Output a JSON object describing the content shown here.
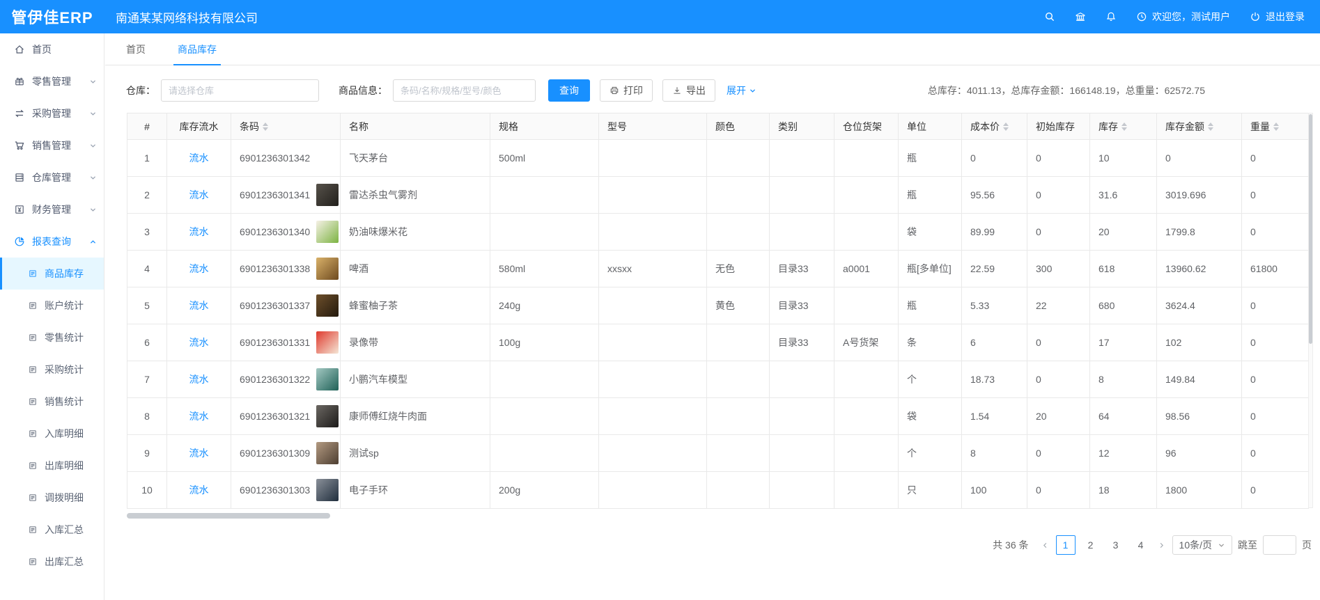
{
  "topbar": {
    "logo": "管伊佳ERP",
    "company": "南通某某网络科技有限公司",
    "welcome": "欢迎您，测试用户",
    "logout": "退出登录"
  },
  "tabs": [
    {
      "id": "home",
      "label": "首页",
      "active": false
    },
    {
      "id": "goods-stock",
      "label": "商品库存",
      "active": true
    }
  ],
  "sidebar": {
    "items": [
      {
        "id": "home",
        "label": "首页",
        "icon": "home-icon",
        "level": 1
      },
      {
        "id": "retail-mgmt",
        "label": "零售管理",
        "icon": "retail-icon",
        "level": 1,
        "chevron": "down"
      },
      {
        "id": "purchase-mgmt",
        "label": "采购管理",
        "icon": "purchase-icon",
        "level": 1,
        "chevron": "down"
      },
      {
        "id": "sales-mgmt",
        "label": "销售管理",
        "icon": "sales-icon",
        "level": 1,
        "chevron": "down"
      },
      {
        "id": "warehouse-mgmt",
        "label": "仓库管理",
        "icon": "warehouse-icon",
        "level": 1,
        "chevron": "down"
      },
      {
        "id": "finance-mgmt",
        "label": "财务管理",
        "icon": "finance-icon",
        "level": 1,
        "chevron": "down"
      },
      {
        "id": "report-query",
        "label": "报表查询",
        "icon": "report-icon",
        "level": 1,
        "chevron": "up",
        "active": true
      },
      {
        "id": "goods-stock",
        "label": "商品库存",
        "icon": "doc-icon",
        "level": 2,
        "selected": true
      },
      {
        "id": "account-stats",
        "label": "账户统计",
        "icon": "doc-icon",
        "level": 2
      },
      {
        "id": "retail-stats",
        "label": "零售统计",
        "icon": "doc-icon",
        "level": 2
      },
      {
        "id": "purchase-stats",
        "label": "采购统计",
        "icon": "doc-icon",
        "level": 2
      },
      {
        "id": "sales-stats",
        "label": "销售统计",
        "icon": "doc-icon",
        "level": 2
      },
      {
        "id": "inbound-detail",
        "label": "入库明细",
        "icon": "doc-icon",
        "level": 2
      },
      {
        "id": "outbound-detail",
        "label": "出库明细",
        "icon": "doc-icon",
        "level": 2
      },
      {
        "id": "transfer-detail",
        "label": "调拨明细",
        "icon": "doc-icon",
        "level": 2
      },
      {
        "id": "inbound-summary",
        "label": "入库汇总",
        "icon": "doc-icon",
        "level": 2
      },
      {
        "id": "outbound-summary",
        "label": "出库汇总",
        "icon": "doc-icon",
        "level": 2
      }
    ]
  },
  "filter": {
    "warehouse_label": "仓库：",
    "warehouse_placeholder": "请选择仓库",
    "product_label": "商品信息：",
    "product_placeholder": "条码/名称/规格/型号/颜色",
    "search_button": "查询",
    "print_button": "打印",
    "export_button": "导出",
    "expand_link": "展开",
    "summary": "总库存：4011.13，总库存金额：166148.19，总重量：62572.75"
  },
  "table": {
    "flow_link_label": "流水",
    "columns": [
      {
        "id": "index",
        "label": "#",
        "sortable": false
      },
      {
        "id": "flow",
        "label": "库存流水",
        "sortable": false
      },
      {
        "id": "barcode",
        "label": "条码",
        "sortable": true
      },
      {
        "id": "name",
        "label": "名称",
        "sortable": false
      },
      {
        "id": "spec",
        "label": "规格",
        "sortable": false
      },
      {
        "id": "model",
        "label": "型号",
        "sortable": false
      },
      {
        "id": "color",
        "label": "颜色",
        "sortable": false
      },
      {
        "id": "category",
        "label": "类别",
        "sortable": false
      },
      {
        "id": "shelf",
        "label": "仓位货架",
        "sortable": false
      },
      {
        "id": "unit",
        "label": "单位",
        "sortable": false
      },
      {
        "id": "cost",
        "label": "成本价",
        "sortable": true
      },
      {
        "id": "initial_stock",
        "label": "初始库存",
        "sortable": false
      },
      {
        "id": "stock",
        "label": "库存",
        "sortable": true
      },
      {
        "id": "amount",
        "label": "库存金额",
        "sortable": true
      },
      {
        "id": "weight",
        "label": "重量",
        "sortable": true
      }
    ],
    "rows": [
      {
        "index": "1",
        "barcode": "6901236301342",
        "thumb": null,
        "name": "飞天茅台",
        "spec": "500ml",
        "model": "",
        "color": "",
        "category": "",
        "shelf": "",
        "unit": "瓶",
        "cost": "0",
        "initial_stock": "0",
        "stock": "10",
        "amount": "0",
        "weight": "0"
      },
      {
        "index": "2",
        "barcode": "6901236301341",
        "thumb": [
          "#56514a",
          "#22201c"
        ],
        "name": "雷达杀虫气雾剂",
        "spec": "",
        "model": "",
        "color": "",
        "category": "",
        "shelf": "",
        "unit": "瓶",
        "cost": "95.56",
        "initial_stock": "0",
        "stock": "31.6",
        "amount": "3019.696",
        "weight": "0"
      },
      {
        "index": "3",
        "barcode": "6901236301340",
        "thumb": [
          "#f6f1e6",
          "#7cb342"
        ],
        "name": "奶油味爆米花",
        "spec": "",
        "model": "",
        "color": "",
        "category": "",
        "shelf": "",
        "unit": "袋",
        "cost": "89.99",
        "initial_stock": "0",
        "stock": "20",
        "amount": "1799.8",
        "weight": "0"
      },
      {
        "index": "4",
        "barcode": "6901236301338",
        "thumb": [
          "#d9b169",
          "#6e4a1f"
        ],
        "name": "啤酒",
        "spec": "580ml",
        "model": "xxsxx",
        "color": "无色",
        "category": "目录33",
        "shelf": "a0001",
        "unit": "瓶[多单位]",
        "cost": "22.59",
        "initial_stock": "300",
        "stock": "618",
        "amount": "13960.62",
        "weight": "61800"
      },
      {
        "index": "5",
        "barcode": "6901236301337",
        "thumb": [
          "#6d4f2b",
          "#241a0d"
        ],
        "name": "蜂蜜柚子茶",
        "spec": "240g",
        "model": "",
        "color": "黄色",
        "category": "目录33",
        "shelf": "",
        "unit": "瓶",
        "cost": "5.33",
        "initial_stock": "22",
        "stock": "680",
        "amount": "3624.4",
        "weight": "0"
      },
      {
        "index": "6",
        "barcode": "6901236301331",
        "thumb": [
          "#df3a2e",
          "#f5e6d5"
        ],
        "name": "录像带",
        "spec": "100g",
        "model": "",
        "color": "",
        "category": "目录33",
        "shelf": "A号货架",
        "unit": "条",
        "cost": "6",
        "initial_stock": "0",
        "stock": "17",
        "amount": "102",
        "weight": "0"
      },
      {
        "index": "7",
        "barcode": "6901236301322",
        "thumb": [
          "#a3c8c2",
          "#1f6157"
        ],
        "name": "小鹏汽车模型",
        "spec": "",
        "model": "",
        "color": "",
        "category": "",
        "shelf": "",
        "unit": "个",
        "cost": "18.73",
        "initial_stock": "0",
        "stock": "8",
        "amount": "149.84",
        "weight": "0"
      },
      {
        "index": "8",
        "barcode": "6901236301321",
        "thumb": [
          "#6b6762",
          "#1c1a19"
        ],
        "name": "康师傅红烧牛肉面",
        "spec": "",
        "model": "",
        "color": "",
        "category": "",
        "shelf": "",
        "unit": "袋",
        "cost": "1.54",
        "initial_stock": "20",
        "stock": "64",
        "amount": "98.56",
        "weight": "0"
      },
      {
        "index": "9",
        "barcode": "6901236301309",
        "thumb": [
          "#b39a81",
          "#4d3e31"
        ],
        "name": "测试sp",
        "spec": "",
        "model": "",
        "color": "",
        "category": "",
        "shelf": "",
        "unit": "个",
        "cost": "8",
        "initial_stock": "0",
        "stock": "12",
        "amount": "96",
        "weight": "0"
      },
      {
        "index": "10",
        "barcode": "6901236301303",
        "thumb": [
          "#8a9099",
          "#202e3d"
        ],
        "name": "电子手环",
        "spec": "200g",
        "model": "",
        "color": "",
        "category": "",
        "shelf": "",
        "unit": "只",
        "cost": "100",
        "initial_stock": "0",
        "stock": "18",
        "amount": "1800",
        "weight": "0"
      }
    ]
  },
  "pagination": {
    "total": "共 36 条",
    "pages": [
      "1",
      "2",
      "3",
      "4"
    ],
    "active_page": "1",
    "page_size": "10条/页",
    "jump_label": "跳至",
    "jump_suffix": "页",
    "jump_value": ""
  },
  "colors": {
    "primary": "#1890ff",
    "sidebar_selected_bg": "#e6f7ff"
  }
}
